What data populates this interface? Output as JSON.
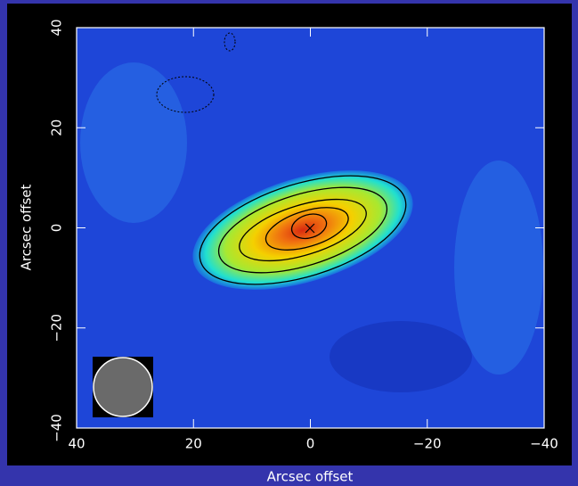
{
  "chart_data": {
    "type": "contour",
    "xlabel": "Arcsec offset",
    "ylabel": "Arcsec offset",
    "xlim": [
      40,
      -40
    ],
    "ylim": [
      -40,
      40
    ],
    "xticks": [
      40,
      20,
      0,
      {
        "value": -20,
        "label": "−20"
      },
      {
        "value": -40,
        "label": "−40"
      }
    ],
    "yticks": [
      {
        "value": -40,
        "label": "−40"
      },
      {
        "value": -20,
        "label": "−20"
      },
      0,
      20,
      40
    ]
  }
}
